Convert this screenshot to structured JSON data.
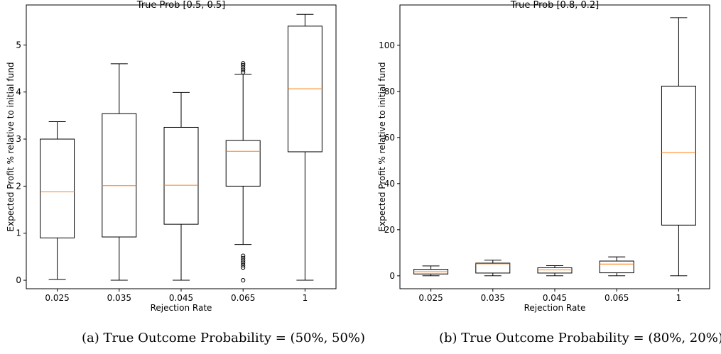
{
  "chart_data": [
    {
      "type": "box",
      "title": "True Prob [0.5, 0.5]",
      "xlabel": "Rejection Rate",
      "ylabel": "Expected Profit % relative to initial fund",
      "categories": [
        "0.025",
        "0.035",
        "0.045",
        "0.065",
        "1"
      ],
      "ylim": [
        -0.18,
        5.85
      ],
      "yticks": [
        0,
        1,
        2,
        3,
        4,
        5
      ],
      "grid": false,
      "boxes": [
        {
          "whisker_low": 0.02,
          "q1": 0.9,
          "median": 1.88,
          "q3": 3.0,
          "whisker_high": 3.37,
          "outliers": []
        },
        {
          "whisker_low": 0.0,
          "q1": 0.92,
          "median": 2.01,
          "q3": 3.54,
          "whisker_high": 4.6,
          "outliers": []
        },
        {
          "whisker_low": 0.0,
          "q1": 1.19,
          "median": 2.02,
          "q3": 3.25,
          "whisker_high": 3.99,
          "outliers": []
        },
        {
          "whisker_low": 0.76,
          "q1": 2.0,
          "median": 2.74,
          "q3": 2.97,
          "whisker_high": 4.38,
          "outliers": [
            0.0,
            0.27,
            0.32,
            0.37,
            0.42,
            0.47,
            0.52,
            4.42,
            4.47,
            4.52,
            4.57,
            4.61
          ]
        },
        {
          "whisker_low": 0.0,
          "q1": 2.73,
          "median": 4.07,
          "q3": 5.4,
          "whisker_high": 5.65,
          "outliers": []
        }
      ]
    },
    {
      "type": "box",
      "title": "True Prob [0.8, 0.2]",
      "xlabel": "Rejection Rate",
      "ylabel": "Expected Profit % relative to initial fund",
      "categories": [
        "0.025",
        "0.035",
        "0.045",
        "0.065",
        "1"
      ],
      "ylim": [
        -5.6,
        117.5
      ],
      "yticks": [
        0,
        20,
        40,
        60,
        80,
        100
      ],
      "grid": false,
      "boxes": [
        {
          "whisker_low": 0.0,
          "q1": 0.8,
          "median": 1.8,
          "q3": 2.8,
          "whisker_high": 4.3,
          "outliers": []
        },
        {
          "whisker_low": 0.0,
          "q1": 1.2,
          "median": 5.2,
          "q3": 5.5,
          "whisker_high": 6.8,
          "outliers": []
        },
        {
          "whisker_low": 0.0,
          "q1": 1.2,
          "median": 2.6,
          "q3": 3.5,
          "whisker_high": 4.4,
          "outliers": []
        },
        {
          "whisker_low": 0.0,
          "q1": 1.3,
          "median": 5.1,
          "q3": 6.4,
          "whisker_high": 8.2,
          "outliers": []
        },
        {
          "whisker_low": 0.0,
          "q1": 22.0,
          "median": 53.5,
          "q3": 82.3,
          "whisker_high": 112.0,
          "outliers": []
        }
      ]
    }
  ],
  "captions": [
    "(a) True Outcome Probability = (50%, 50%)",
    "(b) True Outcome Probability = (80%, 20%)"
  ],
  "colors": {
    "box": "#000000",
    "median": "#ff7f0e",
    "outlier": "#000000"
  }
}
